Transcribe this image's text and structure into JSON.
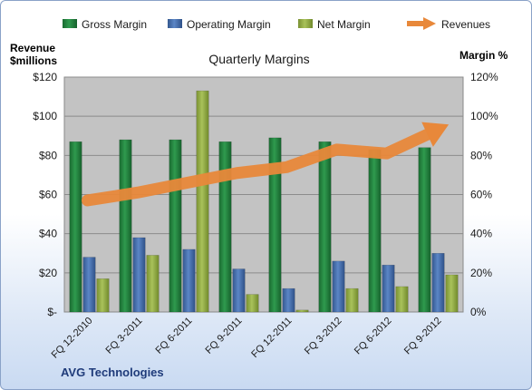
{
  "colors": {
    "gross": "#1e7a38",
    "operating": "#3f68a8",
    "net": "#8fa83c",
    "revenues": "#e8883a",
    "plot_bg": "#c3c3c3"
  },
  "company_label": "AVG Technologies",
  "chart_data": {
    "type": "bar",
    "title": "Quarterly Margins",
    "y_left_label_lines": [
      "Revenue",
      "$millions"
    ],
    "y_right_label": "Margin %",
    "y_left_range": [
      0,
      120
    ],
    "y_left_ticks": [
      "$-",
      "$20",
      "$40",
      "$60",
      "$80",
      "$100",
      "$120"
    ],
    "y_right_range": [
      0,
      120
    ],
    "y_right_ticks": [
      "0%",
      "20%",
      "40%",
      "60%",
      "80%",
      "100%",
      "120%"
    ],
    "categories": [
      "FQ 12-2010",
      "FQ 3-2011",
      "FQ 6-2011",
      "FQ 9-2011",
      "FQ 12-2011",
      "FQ 3-2012",
      "FQ 6-2012",
      "FQ 9-2012"
    ],
    "series": [
      {
        "name": "Gross Margin",
        "axis": "right",
        "unit": "%",
        "values": [
          87,
          88,
          88,
          87,
          89,
          87,
          83,
          84
        ]
      },
      {
        "name": "Operating Margin",
        "axis": "right",
        "unit": "%",
        "values": [
          28,
          38,
          32,
          22,
          12,
          26,
          24,
          30
        ]
      },
      {
        "name": "Net Margin",
        "axis": "right",
        "unit": "%",
        "values": [
          17,
          29,
          113,
          9,
          1,
          12,
          13,
          19
        ]
      },
      {
        "name": "Revenues",
        "axis": "left",
        "unit": "$millions",
        "type": "line",
        "values": [
          57,
          61,
          66,
          71,
          74,
          83,
          81,
          95
        ]
      }
    ],
    "grid": true,
    "legend_position": "top"
  }
}
